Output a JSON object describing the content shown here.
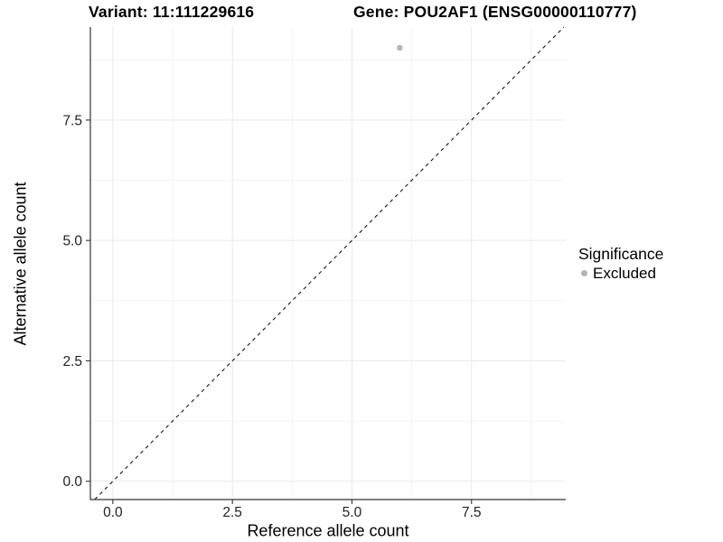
{
  "plot_titles": {
    "variant": "Variant: 11:111229616",
    "gene": "Gene: POU2AF1 (ENSG00000110777)"
  },
  "axis_labels": {
    "x": "Reference allele count",
    "y": "Alternative allele count"
  },
  "legend": {
    "title": "Significance",
    "items": [
      {
        "label": "Excluded",
        "color": "#b5b5b5"
      }
    ]
  },
  "chart_data": {
    "type": "scatter",
    "title_left": "Variant: 11:111229616",
    "title_right": "Gene: POU2AF1 (ENSG00000110777)",
    "xlabel": "Reference allele count",
    "ylabel": "Alternative allele count",
    "xlim": [
      -0.47,
      9.47
    ],
    "ylim": [
      -0.38,
      9.43
    ],
    "x_major_ticks": [
      0,
      2.5,
      5,
      7.5
    ],
    "x_tick_labels": [
      "0.0",
      "2.5",
      "5.0",
      "7.5"
    ],
    "y_major_ticks": [
      0,
      2.5,
      5,
      7.5
    ],
    "y_tick_labels": [
      "0.0",
      "2.5",
      "5.0",
      "7.5"
    ],
    "x_minor_ticks": [
      1.25,
      3.75,
      6.25,
      8.75
    ],
    "y_minor_ticks": [
      1.25,
      3.75,
      6.25,
      8.75
    ],
    "grid": true,
    "legend_position": "right",
    "series": [
      {
        "name": "Excluded",
        "color": "#b5b5b5",
        "points": [
          {
            "x": 6,
            "y": 9
          }
        ]
      }
    ],
    "reference_line": {
      "slope": 1,
      "intercept": 0,
      "style": "dashed",
      "color": "#000000"
    },
    "style": {
      "grid_major_color": "#e9e9e9",
      "grid_minor_color": "#f4f4f4",
      "axis_line_color": "#333333",
      "tick_label_color": "#222222",
      "point_radius": 3.3
    }
  }
}
